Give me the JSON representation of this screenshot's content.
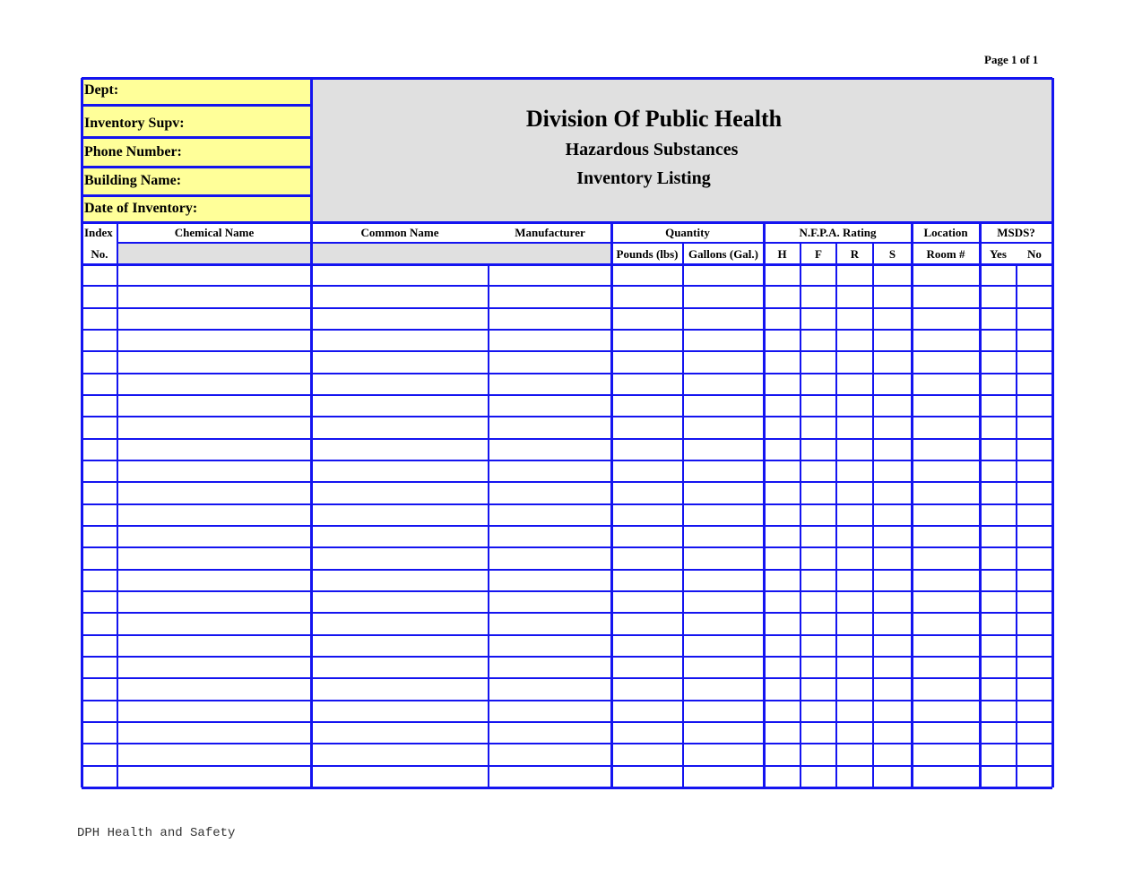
{
  "page_counter": "Page 1 of  1",
  "info_fields": [
    {
      "label": "Dept:"
    },
    {
      "label": "Inventory  Supv:"
    },
    {
      "label": "Phone Number:"
    },
    {
      "label": "Building Name:"
    },
    {
      "label": "Date of Inventory:"
    }
  ],
  "header": {
    "title": "Division Of Public Health",
    "subtitle1": "Hazardous Substances",
    "subtitle2": "Inventory Listing"
  },
  "columns": {
    "index": "Index",
    "index_no": "No.",
    "chemical_name": "Chemical Name",
    "common_name": "Common Name",
    "manufacturer": "Manufacturer",
    "quantity": "Quantity",
    "pounds": "Pounds (lbs)",
    "gallons": "Gallons (Gal.)",
    "nfpa": "N.F.P.A. Rating",
    "h": "H",
    "f": "F",
    "r": "R",
    "s": "S",
    "location": "Location",
    "room": "Room #",
    "msds": "MSDS?",
    "yes": "Yes",
    "no": "No"
  },
  "colors": {
    "border": "#1414f0",
    "field_bg": "#ffff99",
    "header_bg": "#e0e0e0"
  },
  "footer": "DPH Health and Safety"
}
